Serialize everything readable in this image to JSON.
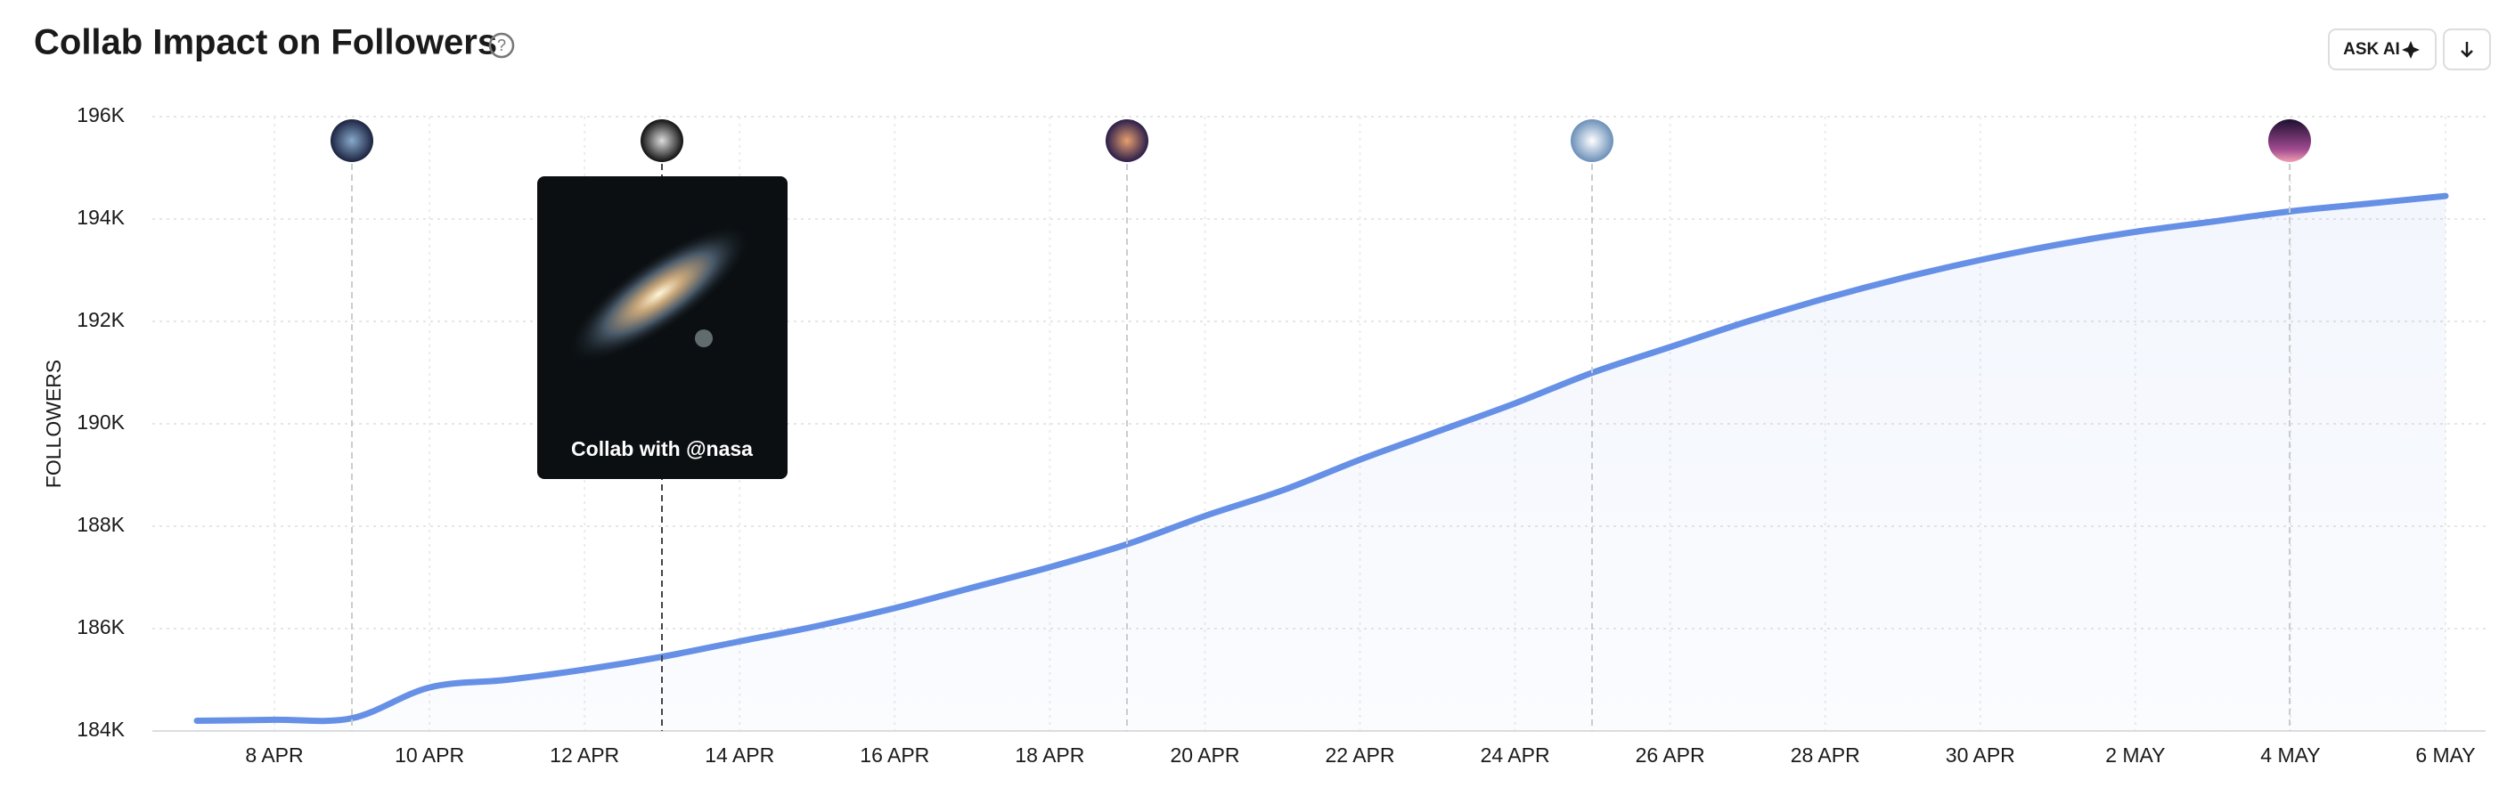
{
  "chart_data": {
    "type": "line",
    "title": "Collab Impact on Followers",
    "buttons": {
      "ask_ai": "ASK AI"
    },
    "y_label": "FOLLOWERS",
    "categories": [
      null,
      "8 APR",
      null,
      "10 APR",
      null,
      "12 APR",
      null,
      "14 APR",
      null,
      "16 APR",
      null,
      "18 APR",
      null,
      "20 APR",
      null,
      "22 APR",
      null,
      "24 APR",
      null,
      "26 APR",
      null,
      "28 APR",
      null,
      "30 APR",
      null,
      "2 MAY",
      null,
      "4 MAY",
      null,
      "6 MAY"
    ],
    "values": [
      184200,
      184220,
      184250,
      184850,
      185000,
      185200,
      185450,
      185750,
      186050,
      186400,
      186800,
      187200,
      187650,
      188200,
      188700,
      189300,
      189850,
      190400,
      191000,
      191500,
      192000,
      192450,
      192850,
      193200,
      193500,
      193750,
      193950,
      194150,
      194300,
      194450
    ],
    "color": "#6690e6",
    "ylim": [
      184000,
      196000
    ],
    "yticks": [
      {
        "value": 184000,
        "label": "184K"
      },
      {
        "value": 186000,
        "label": "186K"
      },
      {
        "value": 188000,
        "label": "188K"
      },
      {
        "value": 190000,
        "label": "190K"
      },
      {
        "value": 192000,
        "label": "192K"
      },
      {
        "value": 194000,
        "label": "194K"
      },
      {
        "value": 196000,
        "label": "196K"
      }
    ],
    "grid": true,
    "annotation": "Collab with @nasa"
  }
}
